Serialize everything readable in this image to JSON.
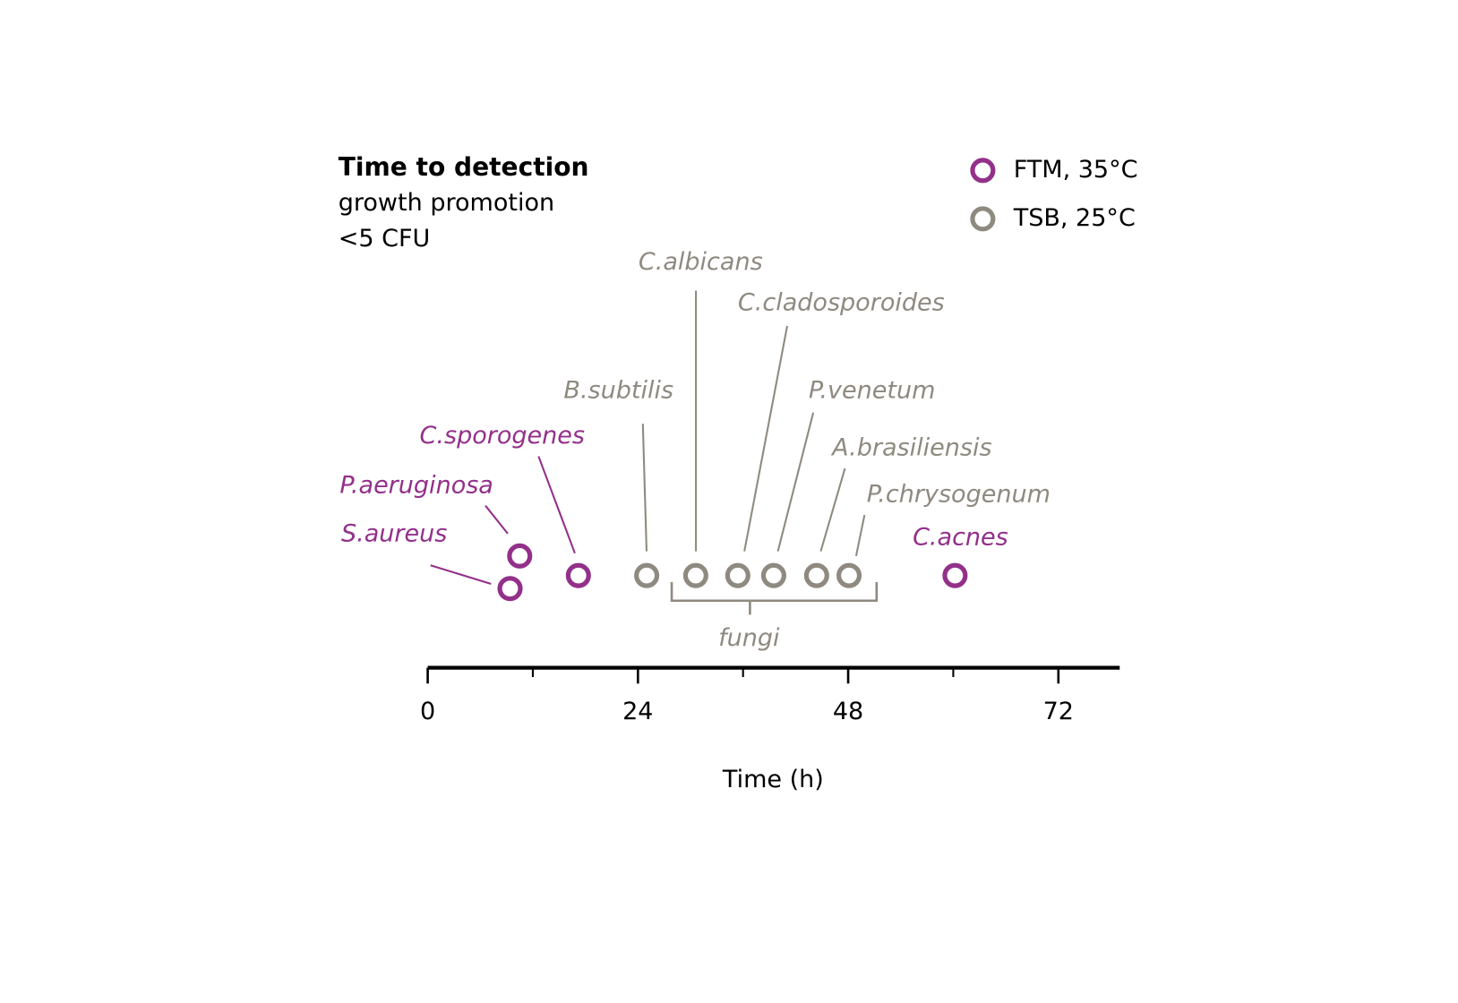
{
  "chart_data": {
    "type": "timeline",
    "title": "Time to detection",
    "subtitle": [
      "growth promotion",
      "<5 CFU"
    ],
    "xlabel": "Time (h)",
    "xlim": [
      0,
      79
    ],
    "xticks": [
      0,
      24,
      48,
      72
    ],
    "xminor_ticks": [
      12,
      36,
      60
    ],
    "annotation": "fungi",
    "series": [
      {
        "name": "FTM, 35°C",
        "color": "#93308a",
        "x": [
          9.4,
          10.5,
          17.2,
          60.2
        ],
        "labels": [
          "S.aureus",
          "P.aeruginosa",
          "C.sporogenes",
          "C.acnes"
        ]
      },
      {
        "name": "TSB, 25°C",
        "color": "#8f8a80",
        "x": [
          25,
          30.6,
          35.4,
          39.5,
          44.4,
          48.1
        ],
        "labels": [
          "B.subtilis",
          "C.albicans",
          "C.cladosporoides",
          "P.venetum",
          "A.brasiliensis",
          "P.chrysogenum"
        ]
      }
    ]
  }
}
